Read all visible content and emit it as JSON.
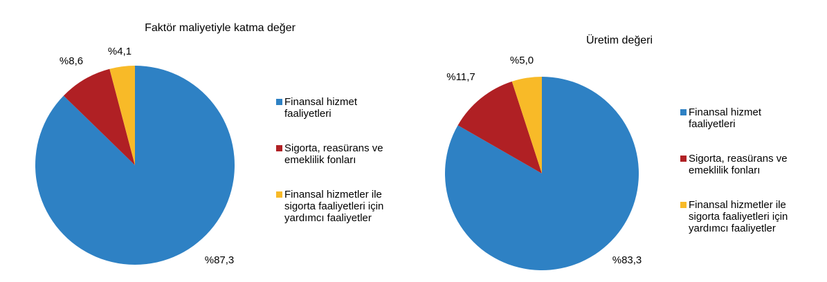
{
  "page": {
    "background_color": "#FFFFFF",
    "text_color": "#000000"
  },
  "palette": {
    "blue": "#2E81C4",
    "dark_red": "#B02024",
    "yellow": "#F8BA28"
  },
  "chart_data": [
    {
      "type": "pie",
      "title": "Faktör maliyetiyle katma değer",
      "categories": [
        "Finansal hizmet faaliyetleri",
        "Sigorta, reasürans ve emeklilik fonları",
        "Finansal hizmetler ile sigorta faaliyetleri için yardımcı faaliyetler"
      ],
      "values": [
        87.3,
        8.6,
        4.1
      ],
      "labels": [
        "%87,3",
        "%8,6",
        "%4,1"
      ],
      "colors": [
        "#2E81C4",
        "#B02024",
        "#F8BA28"
      ],
      "start_angle_deg": 0,
      "direction": "clockwise",
      "legend_position": "right",
      "grid": false
    },
    {
      "type": "pie",
      "title": "Üretim değeri",
      "categories": [
        "Finansal hizmet faaliyetleri",
        "Sigorta, reasürans ve emeklilik fonları",
        "Finansal hizmetler ile sigorta faaliyetleri için yardımcı faaliyetler"
      ],
      "values": [
        83.3,
        11.7,
        5.0
      ],
      "labels": [
        "%83,3",
        "%11,7",
        "%5,0"
      ],
      "colors": [
        "#2E81C4",
        "#B02024",
        "#F8BA28"
      ],
      "start_angle_deg": 0,
      "direction": "clockwise",
      "legend_position": "right",
      "grid": false
    }
  ]
}
